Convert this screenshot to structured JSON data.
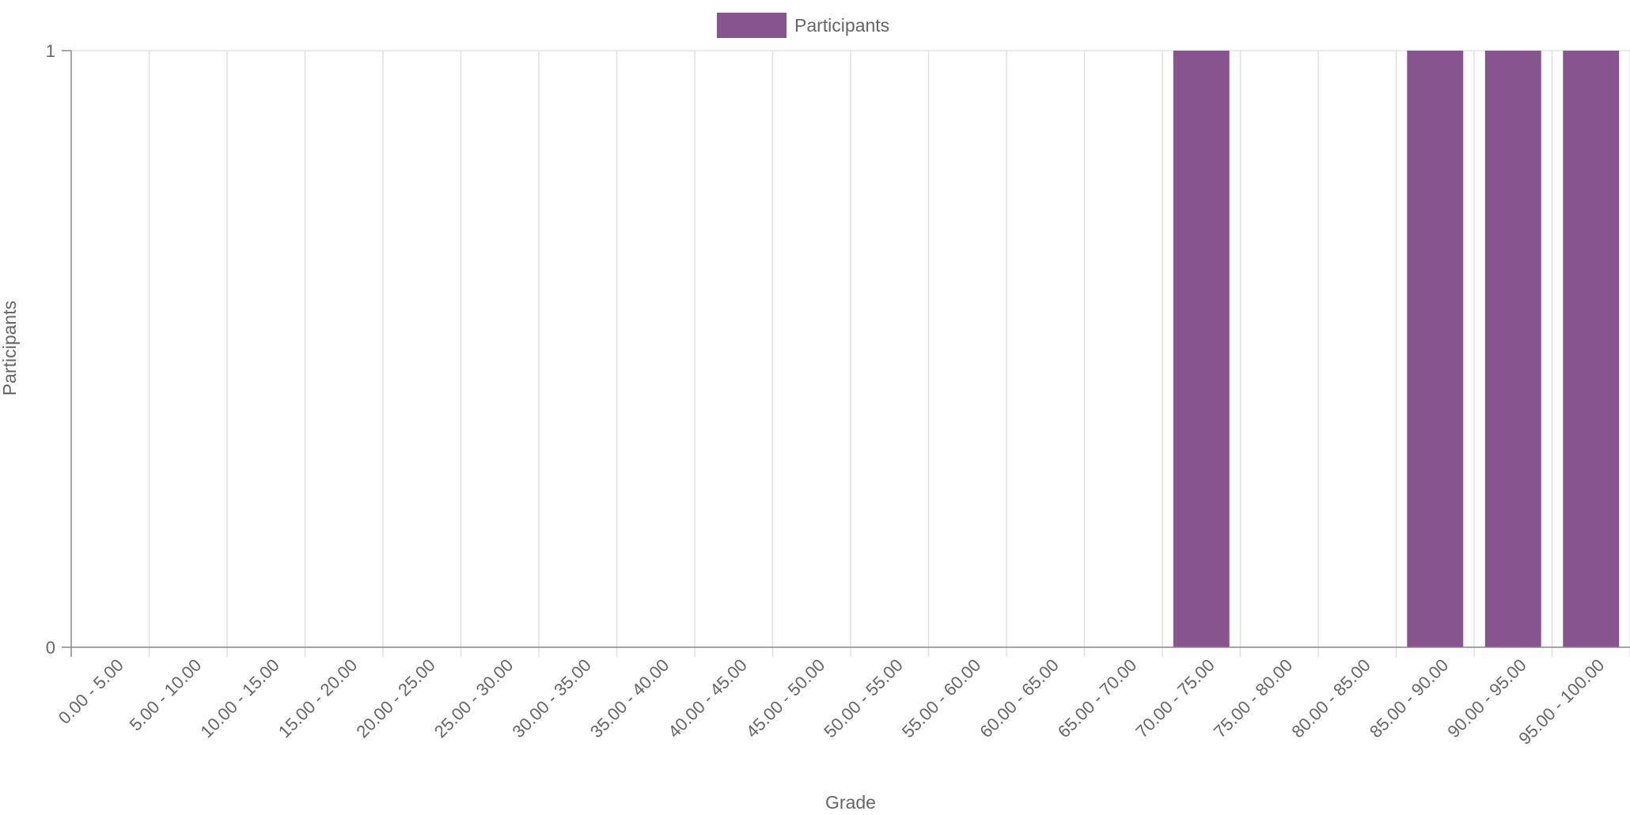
{
  "chart_data": {
    "type": "bar",
    "categories": [
      "0.00 - 5.00",
      "5.00 - 10.00",
      "10.00 - 15.00",
      "15.00 - 20.00",
      "20.00 - 25.00",
      "25.00 - 30.00",
      "30.00 - 35.00",
      "35.00 - 40.00",
      "40.00 - 45.00",
      "45.00 - 50.00",
      "50.00 - 55.00",
      "55.00 - 60.00",
      "60.00 - 65.00",
      "65.00 - 70.00",
      "70.00 - 75.00",
      "75.00 - 80.00",
      "80.00 - 85.00",
      "85.00 - 90.00",
      "90.00 - 95.00",
      "95.00 - 100.00"
    ],
    "series": [
      {
        "name": "Participants",
        "values": [
          0,
          0,
          0,
          0,
          0,
          0,
          0,
          0,
          0,
          0,
          0,
          0,
          0,
          0,
          1,
          0,
          0,
          1,
          1,
          1
        ],
        "color": "#87548f"
      }
    ],
    "xlabel": "Grade",
    "ylabel": "Participants",
    "ylim": [
      0,
      1
    ],
    "yticks": [
      "0",
      "1"
    ],
    "grid": true,
    "legend_position": "top-center"
  }
}
